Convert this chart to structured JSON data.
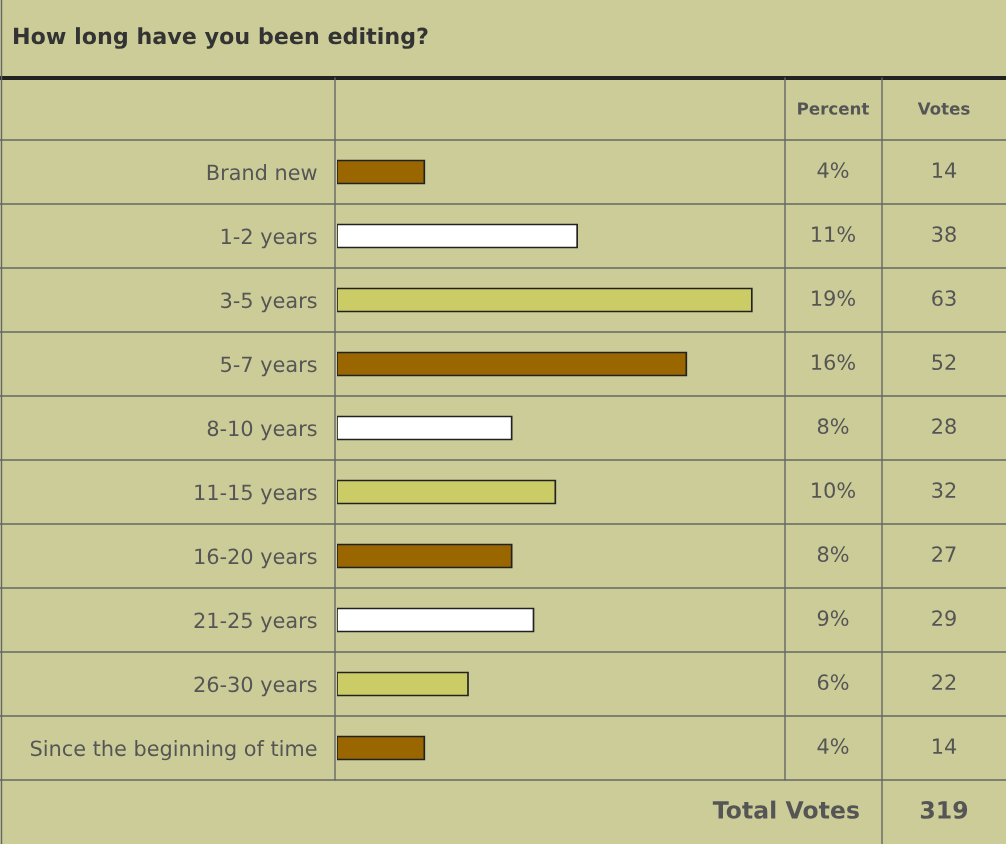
{
  "chart_data": {
    "type": "bar",
    "orientation": "horizontal",
    "title": "How long have you been editing?",
    "categories": [
      "Brand new",
      "1-2 years",
      "3-5 years",
      "5-7 years",
      "8-10 years",
      "11-15 years",
      "16-20 years",
      "21-25 years",
      "26-30 years",
      "Since the beginning of time"
    ],
    "values": [
      4,
      11,
      19,
      16,
      8,
      10,
      8,
      9,
      6,
      4
    ],
    "value_labels": [
      "4%",
      "11%",
      "19%",
      "16%",
      "8%",
      "10%",
      "8%",
      "9%",
      "6%",
      "4%"
    ],
    "colors": [
      "#996600",
      "#ffffff",
      "#cccc66",
      "#996600",
      "#ffffff",
      "#cccc66",
      "#996600",
      "#ffffff",
      "#cccc66",
      "#996600"
    ],
    "annotations": [
      "Percent",
      "Votes",
      "14",
      "38",
      "63",
      "52",
      "28",
      "32",
      "27",
      "29",
      "22",
      "14",
      "Total Votes",
      "319"
    ],
    "grid": false,
    "legend": false
  }
}
